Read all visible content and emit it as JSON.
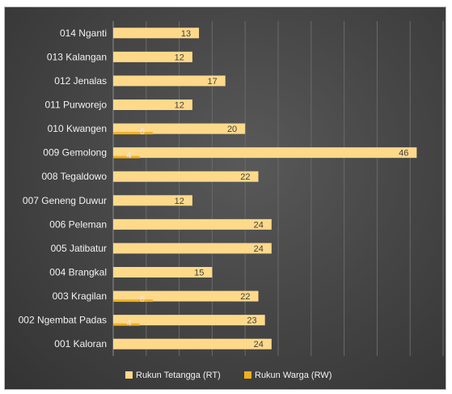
{
  "chart_data": {
    "type": "bar",
    "orientation": "horizontal",
    "categories": [
      "014 Nganti",
      "013 Kalangan",
      "012 Jenalas",
      "011 Purworejo",
      "010 Kwangen",
      "009 Gemolong",
      "008 Tegaldowo",
      "007 Geneng Duwur",
      "006 Peleman",
      "005 Jatibatur",
      "004 Brangkal",
      "003 Kragilan",
      "002 Ngembat Padas",
      "001 Kaloran"
    ],
    "series": [
      {
        "name": "Rukun Tetangga (RT)",
        "color": "#ffd98a",
        "label_color": "#404040",
        "values": [
          13,
          12,
          17,
          12,
          20,
          46,
          22,
          12,
          24,
          24,
          15,
          22,
          23,
          24
        ]
      },
      {
        "name": "Rukun Warga (RW)",
        "color": "#f0b020",
        "label_color": "#e8e8e8",
        "values": [
          null,
          null,
          null,
          null,
          6,
          4,
          null,
          null,
          null,
          null,
          null,
          6,
          4,
          null
        ]
      }
    ],
    "xlim": [
      0,
      50
    ],
    "grid": true,
    "legend_position": "bottom",
    "title": "",
    "xlabel": "",
    "ylabel": ""
  }
}
